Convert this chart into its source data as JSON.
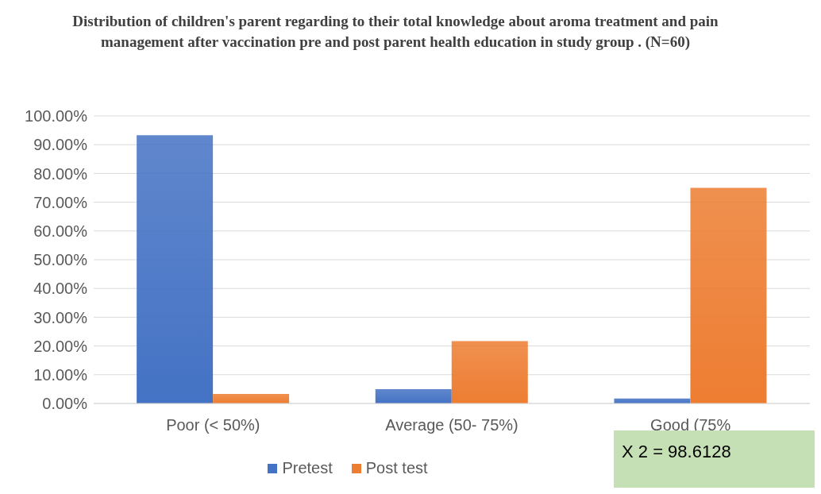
{
  "chart_data": {
    "type": "bar",
    "title": "Distribution of children's parent regarding to their total knowledge about aroma treatment and pain management after vaccination pre and post parent health education in study group . (N=60)",
    "categories": [
      "Poor (< 50%)",
      "Average (50- 75%)",
      "Good (75%"
    ],
    "series": [
      {
        "name": "Pretest",
        "color": "#4472c4",
        "values": [
          93.3,
          5,
          1.7
        ]
      },
      {
        "name": "Post test",
        "color": "#ed7d31",
        "values": [
          3.3,
          21.7,
          75
        ]
      }
    ],
    "ylim": [
      0,
      100
    ],
    "yticks": [
      {
        "value": 0,
        "label": "0.00%"
      },
      {
        "value": 10,
        "label": "10.00%"
      },
      {
        "value": 20,
        "label": "20.00%"
      },
      {
        "value": 30,
        "label": "30.00%"
      },
      {
        "value": 40,
        "label": "40.00%"
      },
      {
        "value": 50,
        "label": "50.00%"
      },
      {
        "value": 60,
        "label": "60.00%"
      },
      {
        "value": 70,
        "label": "70.00%"
      },
      {
        "value": 80,
        "label": "80.00%"
      },
      {
        "value": 90,
        "label": "90.00%"
      },
      {
        "value": 100,
        "label": "100.00%"
      }
    ],
    "grid": "y",
    "legend": "bottom",
    "annotations": [
      "X 2 = 98.6128"
    ]
  }
}
